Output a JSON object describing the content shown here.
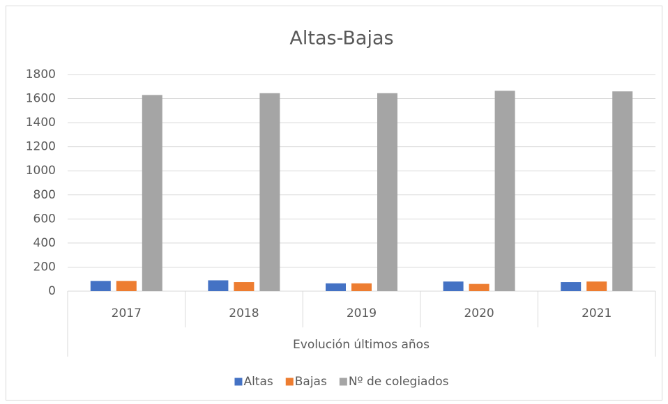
{
  "chart_data": {
    "type": "bar",
    "title": "Altas-Bajas",
    "x_label": "Evolución últimos años",
    "categories": [
      "2017",
      "2018",
      "2019",
      "2020",
      "2021"
    ],
    "series": [
      {
        "name": "Altas",
        "color": "#4472c4",
        "values": [
          85,
          90,
          65,
          80,
          75
        ]
      },
      {
        "name": "Bajas",
        "color": "#ed7d31",
        "values": [
          85,
          75,
          65,
          60,
          80
        ]
      },
      {
        "name": "Nº de colegiados",
        "color": "#a5a5a5",
        "values": [
          1630,
          1645,
          1645,
          1665,
          1660
        ]
      }
    ],
    "ylim": [
      0,
      1800
    ],
    "yticks": [
      0,
      200,
      400,
      600,
      800,
      1000,
      1200,
      1400,
      1600,
      1800
    ],
    "grid": true,
    "legend": "bottom"
  }
}
